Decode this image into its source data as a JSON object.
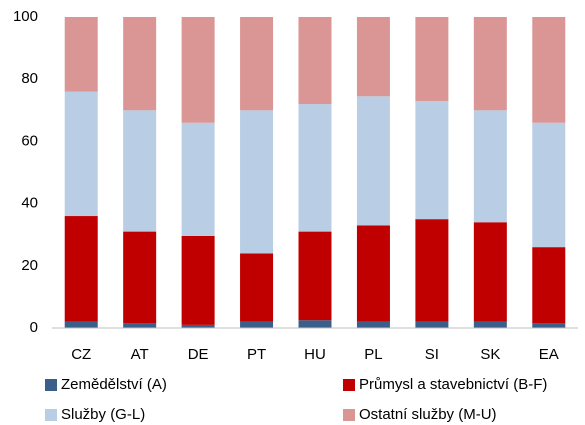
{
  "chart_data": {
    "type": "stacked_bar",
    "categories": [
      "CZ",
      "AT",
      "DE",
      "PT",
      "HU",
      "PL",
      "SI",
      "SK",
      "EA"
    ],
    "series": [
      {
        "name": "Zemědělství (A)",
        "color": "#3a5f8a",
        "values": [
          2,
          1.5,
          1,
          2,
          2.5,
          2,
          2,
          2,
          1.5
        ]
      },
      {
        "name": "Průmysl a stavebnictví (B-F)",
        "color": "#c00000",
        "values": [
          34,
          29.5,
          28.6,
          22,
          28.5,
          31,
          33,
          32,
          24.5
        ]
      },
      {
        "name": "Služby (G-L)",
        "color": "#b9cde5",
        "values": [
          40,
          39,
          36.4,
          46,
          41,
          41.5,
          38,
          36,
          40
        ]
      },
      {
        "name": "Ostatní služby (M-U)",
        "color": "#d99694",
        "values": [
          24,
          30,
          34,
          30,
          28,
          25.5,
          27,
          30,
          34
        ]
      }
    ],
    "ylim": [
      0,
      100
    ],
    "yticks": [
      0,
      20,
      40,
      60,
      80,
      100
    ],
    "grid": false
  }
}
